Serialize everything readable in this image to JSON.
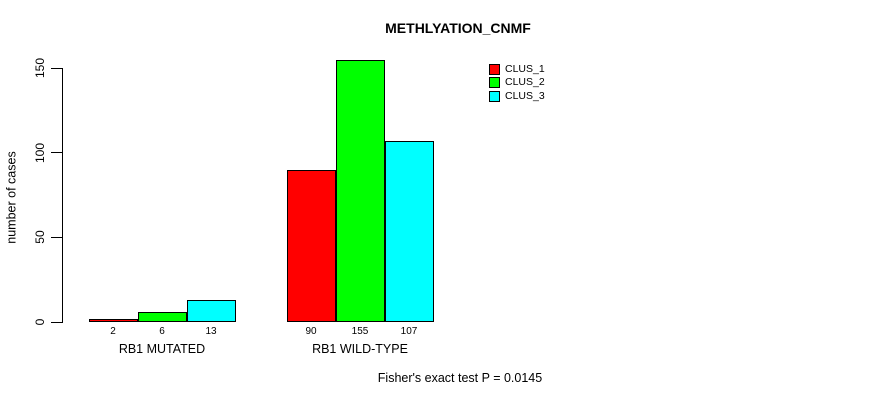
{
  "chart_data": {
    "type": "bar",
    "title": "METHLYATION_CNMF",
    "ylabel": "number of cases",
    "xlabel": "",
    "categories": [
      "RB1 MUTATED",
      "RB1 WILD-TYPE"
    ],
    "series": [
      {
        "name": "CLUS_1",
        "color": "#ff0000",
        "values": [
          2,
          90
        ]
      },
      {
        "name": "CLUS_2",
        "color": "#00ff00",
        "values": [
          6,
          155
        ]
      },
      {
        "name": "CLUS_3",
        "color": "#00ffff",
        "values": [
          13,
          107
        ]
      }
    ],
    "yticks": [
      0,
      50,
      100,
      150
    ],
    "ylim": [
      0,
      150
    ],
    "grid": false,
    "legend_position": "top-right",
    "annotation": "Fisher's exact test P = 0.0145",
    "axis_color": "#000000",
    "background_color": "#ffffff"
  }
}
